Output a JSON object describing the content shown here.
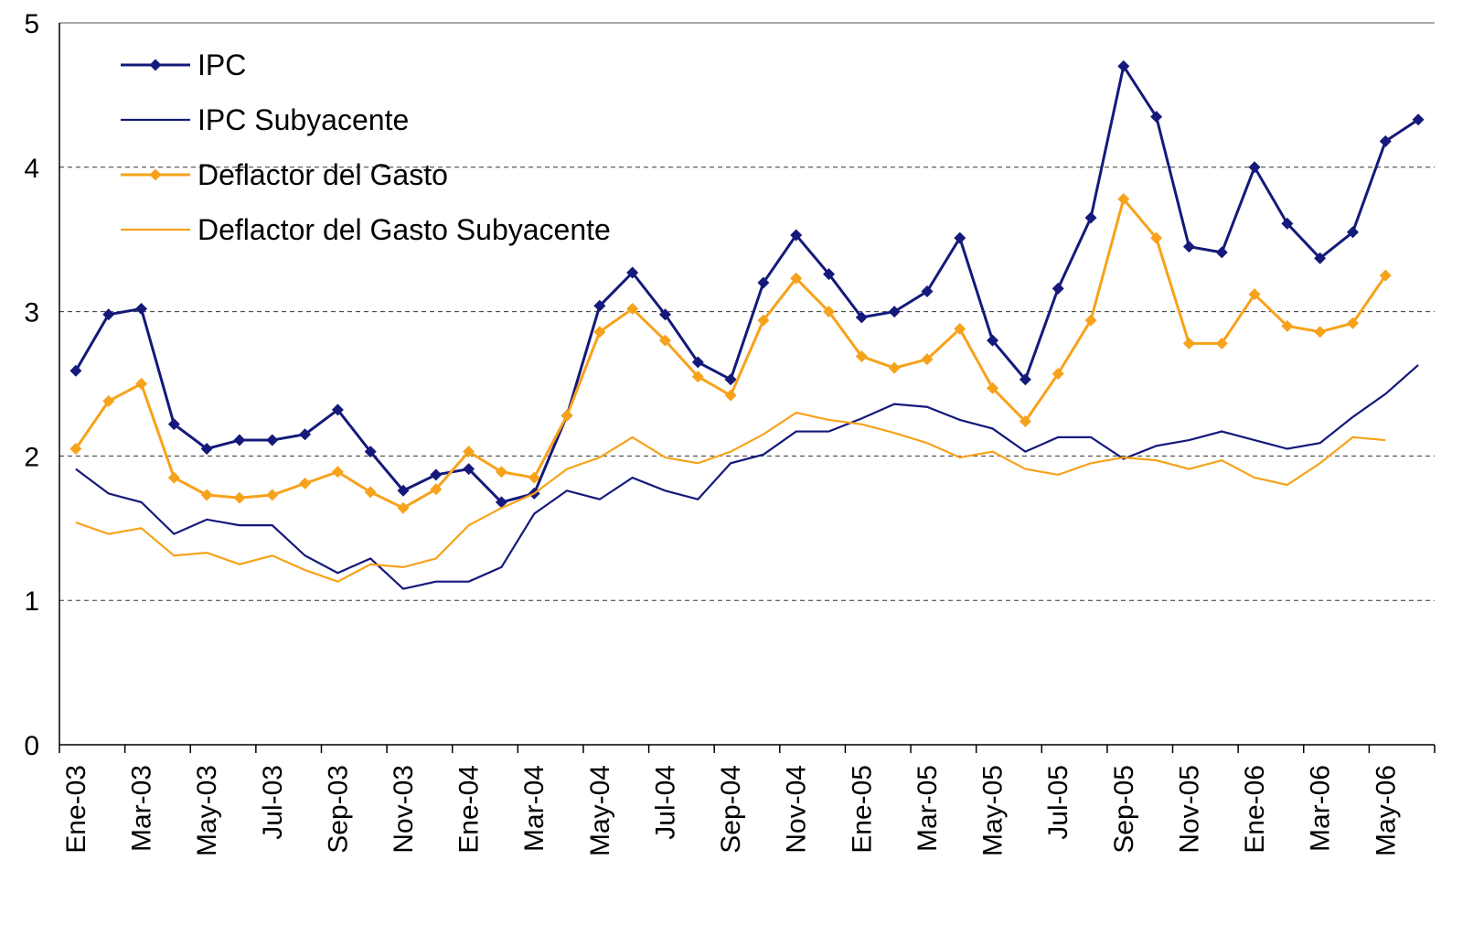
{
  "chart_data": {
    "type": "line",
    "categories": [
      "Ene-03",
      null,
      "Mar-03",
      null,
      "May-03",
      null,
      "Jul-03",
      null,
      "Sep-03",
      null,
      "Nov-03",
      null,
      "Ene-04",
      null,
      "Mar-04",
      null,
      "May-04",
      null,
      "Jul-04",
      null,
      "Sep-04",
      null,
      "Nov-04",
      null,
      "Ene-05",
      null,
      "Mar-05",
      null,
      "May-05",
      null,
      "Jul-05",
      null,
      "Sep-05",
      null,
      "Nov-05",
      null,
      "Ene-06",
      null,
      "Mar-06",
      null,
      "May-06",
      null
    ],
    "series": [
      {
        "name": "IPC",
        "color": "#14197a",
        "marker": true,
        "values": [
          2.59,
          2.98,
          3.02,
          2.22,
          2.05,
          2.11,
          2.11,
          2.15,
          2.32,
          2.03,
          1.76,
          1.87,
          1.91,
          1.68,
          1.74,
          2.28,
          3.04,
          3.27,
          2.98,
          2.65,
          2.53,
          3.2,
          3.53,
          3.26,
          2.96,
          3.0,
          3.14,
          3.51,
          2.8,
          2.53,
          3.16,
          3.65,
          4.7,
          4.35,
          3.45,
          3.41,
          4.0,
          3.61,
          3.37,
          3.55,
          4.18,
          4.33
        ]
      },
      {
        "name": "IPC Subyacente",
        "color": "#14197a",
        "marker": false,
        "values": [
          1.91,
          1.74,
          1.68,
          1.46,
          1.56,
          1.52,
          1.52,
          1.31,
          1.19,
          1.29,
          1.08,
          1.13,
          1.13,
          1.23,
          1.6,
          1.76,
          1.7,
          1.85,
          1.76,
          1.7,
          1.95,
          2.01,
          2.17,
          2.17,
          2.26,
          2.36,
          2.34,
          2.25,
          2.19,
          2.03,
          2.13,
          2.13,
          1.98,
          2.07,
          2.11,
          2.17,
          2.11,
          2.05,
          2.09,
          2.27,
          2.43,
          2.63
        ]
      },
      {
        "name": "Deflactor del Gasto",
        "color": "#f7a21b",
        "marker": true,
        "values": [
          2.05,
          2.38,
          2.5,
          1.85,
          1.73,
          1.71,
          1.73,
          1.81,
          1.89,
          1.75,
          1.64,
          1.77,
          2.03,
          1.89,
          1.85,
          2.28,
          2.86,
          3.02,
          2.8,
          2.55,
          2.42,
          2.94,
          3.23,
          3.0,
          2.69,
          2.61,
          2.67,
          2.88,
          2.47,
          2.24,
          2.57,
          2.94,
          3.78,
          3.51,
          2.78,
          2.78,
          3.12,
          2.9,
          2.86,
          2.92,
          3.25,
          null
        ]
      },
      {
        "name": "Deflactor del Gasto Subyacente",
        "color": "#f7a21b",
        "marker": false,
        "values": [
          1.54,
          1.46,
          1.5,
          1.31,
          1.33,
          1.25,
          1.31,
          1.21,
          1.13,
          1.25,
          1.23,
          1.29,
          1.52,
          1.64,
          1.74,
          1.91,
          1.99,
          2.13,
          1.99,
          1.95,
          2.03,
          2.15,
          2.3,
          2.25,
          2.22,
          2.16,
          2.09,
          1.99,
          2.03,
          1.91,
          1.87,
          1.95,
          1.99,
          1.97,
          1.91,
          1.97,
          1.85,
          1.8,
          1.95,
          2.13,
          2.11,
          null
        ]
      }
    ],
    "ylim": [
      0,
      5
    ],
    "yticks": [
      0,
      1,
      2,
      3,
      4,
      5
    ],
    "grid": true,
    "legend": "top-left"
  }
}
